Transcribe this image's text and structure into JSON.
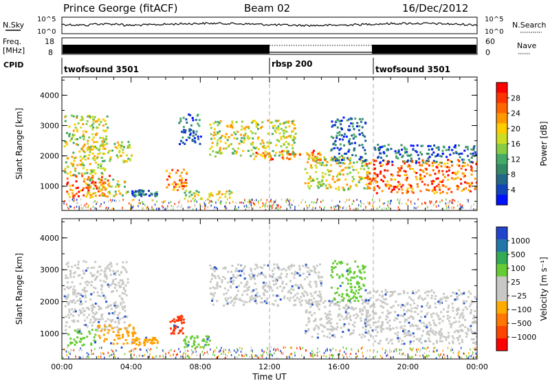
{
  "header": {
    "station": "Prince George (fitACF)",
    "beam": "Beam 02",
    "date": "16/Dec/2012"
  },
  "strip_labels": {
    "nsky": "N.Sky",
    "nsearch": "N.Search",
    "freq": "Freq.",
    "freq_unit": "[MHz]",
    "nave": "Nave",
    "cpid": "CPID"
  },
  "noise_strip": {
    "left_ticks": [
      "10^5",
      "10^0"
    ],
    "right_ticks": [
      "10^5",
      "10^0"
    ]
  },
  "freq_strip": {
    "left_ticks": [
      "18",
      "8"
    ],
    "right_ticks": [
      "60",
      "0"
    ]
  },
  "cpid_segments": [
    {
      "label": "twofsound 3501",
      "start_hour": 0
    },
    {
      "label": "rbsp 200",
      "start_hour": 12
    },
    {
      "label": "twofsound 3501",
      "start_hour": 18
    }
  ],
  "colorbars": {
    "power": {
      "title": "Power [dB]",
      "labels": [
        "28",
        "24",
        "20",
        "16",
        "12",
        "8",
        "4"
      ],
      "colors": [
        "#ff0000",
        "#ff3300",
        "#ff6600",
        "#ff9900",
        "#ffcc00",
        "#ccdd22",
        "#88cc44",
        "#44aa66",
        "#338866",
        "#226688",
        "#1144bb",
        "#0011ff"
      ]
    },
    "velocity": {
      "title": "Velocity [m s⁻¹]",
      "labels": [
        "1000",
        "500",
        "100",
        "25",
        "−25",
        "−100",
        "−500",
        "−1000"
      ],
      "colors": [
        "#2244cc",
        "#2277aa",
        "#33aa55",
        "#66cc33",
        "#c8c8c4",
        "#c8c8c4",
        "#ffaa00",
        "#ff7700",
        "#ff4400",
        "#ff0000"
      ]
    }
  },
  "chart_data": [
    {
      "type": "heatmap",
      "panel": "power",
      "ylabel": "Slant Range [km]",
      "x_range_hours": [
        0,
        24
      ],
      "ylim": [
        200,
        4600
      ],
      "y_ticks": [
        1000,
        2000,
        3000,
        4000
      ],
      "clusters": [
        {
          "t0": 0.2,
          "t1": 2.8,
          "r0": 650,
          "r1": 1400,
          "level": "high"
        },
        {
          "t0": 0.1,
          "t1": 2.6,
          "r0": 1400,
          "r1": 3400,
          "level": "medium"
        },
        {
          "t0": 1.5,
          "t1": 3.8,
          "r0": 700,
          "r1": 1300,
          "level": "medium"
        },
        {
          "t0": 1.8,
          "t1": 4.0,
          "r0": 1800,
          "r1": 2500,
          "level": "medium"
        },
        {
          "t0": 4.0,
          "t1": 5.5,
          "r0": 700,
          "r1": 900,
          "level": "low"
        },
        {
          "t0": 6.0,
          "t1": 7.2,
          "r0": 900,
          "r1": 1600,
          "level": "high"
        },
        {
          "t0": 7.0,
          "t1": 9.8,
          "r0": 600,
          "r1": 900,
          "level": "medium"
        },
        {
          "t0": 6.7,
          "t1": 8.0,
          "r0": 2400,
          "r1": 3400,
          "level": "low"
        },
        {
          "t0": 8.5,
          "t1": 13.5,
          "r0": 2000,
          "r1": 3200,
          "level": "medium"
        },
        {
          "t0": 11.0,
          "t1": 15.0,
          "r0": 1900,
          "r1": 2200,
          "level": "high"
        },
        {
          "t0": 14.0,
          "t1": 17.8,
          "r0": 900,
          "r1": 2000,
          "level": "medium"
        },
        {
          "t0": 15.5,
          "t1": 17.5,
          "r0": 1800,
          "r1": 3300,
          "level": "low"
        },
        {
          "t0": 17.5,
          "t1": 24.0,
          "r0": 800,
          "r1": 1900,
          "level": "high"
        },
        {
          "t0": 18.0,
          "t1": 24.0,
          "r0": 1800,
          "r1": 2400,
          "level": "low"
        }
      ]
    },
    {
      "type": "heatmap",
      "panel": "velocity",
      "ylabel": "Slant Range [km]",
      "xlabel": "Time UT",
      "x_range_hours": [
        0,
        24
      ],
      "x_ticks": [
        "00:00",
        "04:00",
        "08:00",
        "12:00",
        "16:00",
        "20:00",
        "00:00"
      ],
      "ylim": [
        200,
        4600
      ],
      "y_ticks": [
        1000,
        2000,
        3000,
        4000
      ],
      "clusters": [
        {
          "t0": 0.3,
          "t1": 2.0,
          "r0": 650,
          "r1": 1150,
          "vel": "100"
        },
        {
          "t0": 0.1,
          "t1": 3.8,
          "r0": 1100,
          "r1": 3300,
          "vel": "25"
        },
        {
          "t0": 2.0,
          "t1": 4.2,
          "r0": 700,
          "r1": 1300,
          "vel": "-500"
        },
        {
          "t0": 4.0,
          "t1": 5.5,
          "r0": 650,
          "r1": 900,
          "vel": "-500"
        },
        {
          "t0": 6.2,
          "t1": 7.0,
          "r0": 1000,
          "r1": 1600,
          "vel": "-1000"
        },
        {
          "t0": 7.0,
          "t1": 8.5,
          "r0": 600,
          "r1": 950,
          "vel": "100"
        },
        {
          "t0": 8.5,
          "t1": 15.0,
          "r0": 1900,
          "r1": 3200,
          "vel": "25"
        },
        {
          "t0": 14.0,
          "t1": 18.0,
          "r0": 900,
          "r1": 2100,
          "vel": "25"
        },
        {
          "t0": 15.5,
          "t1": 17.5,
          "r0": 2000,
          "r1": 3300,
          "vel": "100"
        },
        {
          "t0": 17.5,
          "t1": 24.0,
          "r0": 700,
          "r1": 2400,
          "vel": "25"
        }
      ]
    }
  ]
}
